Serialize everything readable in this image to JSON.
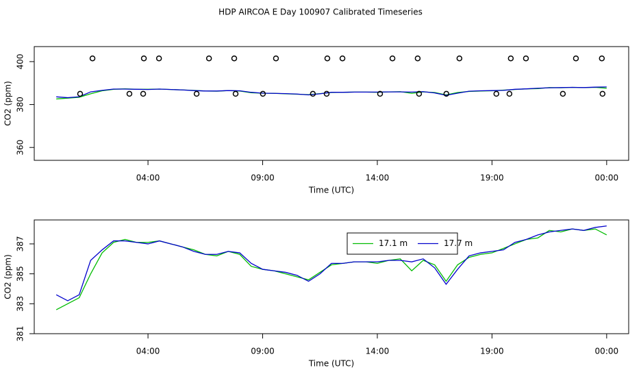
{
  "title": "HDP AIRCOA E  Day 100907  Calibrated Timeseries",
  "chart_data": [
    {
      "type": "line",
      "xlabel": "Time (UTC)",
      "ylabel": "CO2 (ppm)",
      "xlim": [
        -0.96,
        24.96
      ],
      "ylim": [
        354,
        407
      ],
      "xticks": [
        {
          "value": 4,
          "label": "04:00"
        },
        {
          "value": 9,
          "label": "09:00"
        },
        {
          "value": 14,
          "label": "14:00"
        },
        {
          "value": 19,
          "label": "19:00"
        },
        {
          "value": 24,
          "label": "00:00"
        }
      ],
      "yticks": [
        360,
        380,
        400
      ],
      "x": [
        0,
        0.5,
        1,
        1.5,
        2,
        2.5,
        3,
        3.5,
        4,
        4.5,
        5,
        5.5,
        6,
        6.5,
        7,
        7.5,
        8,
        8.5,
        9,
        9.5,
        10,
        10.5,
        11,
        11.5,
        12,
        12.5,
        13,
        13.5,
        14,
        14.5,
        15,
        15.5,
        16,
        16.5,
        17,
        17.5,
        18,
        18.5,
        19,
        19.5,
        20,
        20.5,
        21,
        21.5,
        22,
        22.5,
        23,
        23.5,
        24
      ],
      "series": [
        {
          "color": "#00bb00",
          "values": [
            382.6,
            383.0,
            383.4,
            385.0,
            386.4,
            387.1,
            387.3,
            387.1,
            387.1,
            387.2,
            387.0,
            386.8,
            386.6,
            386.3,
            386.2,
            386.5,
            386.3,
            385.5,
            385.3,
            385.2,
            385.0,
            384.8,
            384.6,
            385.1,
            385.6,
            385.7,
            385.8,
            385.8,
            385.7,
            385.9,
            386.0,
            385.2,
            385.9,
            385.6,
            384.5,
            385.6,
            386.1,
            386.3,
            386.4,
            386.7,
            387.0,
            387.3,
            387.4,
            387.9,
            387.8,
            388.0,
            387.9,
            388.0,
            387.6
          ]
        },
        {
          "color": "#0000cc",
          "values": [
            383.6,
            383.2,
            383.6,
            385.9,
            386.6,
            387.2,
            387.2,
            387.1,
            387.0,
            387.2,
            387.0,
            386.8,
            386.5,
            386.3,
            386.3,
            386.5,
            386.4,
            385.7,
            385.3,
            385.2,
            385.1,
            384.9,
            384.5,
            385.0,
            385.7,
            385.7,
            385.8,
            385.8,
            385.8,
            385.9,
            385.9,
            385.8,
            386.0,
            385.4,
            384.3,
            385.3,
            386.2,
            386.4,
            386.5,
            386.6,
            387.1,
            387.3,
            387.6,
            387.8,
            387.9,
            388.0,
            387.9,
            388.1,
            388.2
          ]
        },
        {
          "color": "#000000",
          "marker": "circle",
          "x": [
            1.58,
            3.82,
            4.48,
            6.66,
            7.76,
            9.58,
            11.82,
            12.48,
            14.66,
            15.76,
            17.58,
            19.82,
            20.48,
            22.66,
            23.79
          ],
          "values": [
            401.5,
            401.5,
            401.5,
            401.5,
            401.5,
            401.5,
            401.5,
            401.5,
            401.5,
            401.5,
            401.5,
            401.5,
            401.5,
            401.5,
            401.5
          ]
        },
        {
          "color": "#000000",
          "marker": "circle",
          "x": [
            1.04,
            3.19,
            3.79,
            6.12,
            7.82,
            9.01,
            11.19,
            11.79,
            14.12,
            15.82,
            17.01,
            19.19,
            19.76,
            22.09,
            23.82
          ],
          "values": [
            385,
            385,
            385,
            385,
            385,
            385,
            385,
            385,
            385,
            385,
            385,
            385,
            385,
            385,
            385
          ]
        }
      ]
    },
    {
      "type": "line",
      "xlabel": "Time (UTC)",
      "ylabel": "CO2 (ppm)",
      "xlim": [
        -0.96,
        24.96
      ],
      "ylim": [
        381.0,
        388.6
      ],
      "xticks": [
        {
          "value": 4,
          "label": "04:00"
        },
        {
          "value": 9,
          "label": "09:00"
        },
        {
          "value": 14,
          "label": "14:00"
        },
        {
          "value": 19,
          "label": "19:00"
        },
        {
          "value": 24,
          "label": "00:00"
        }
      ],
      "yticks": [
        381,
        383,
        385,
        387
      ],
      "legend": "top-center",
      "x": [
        0,
        0.5,
        1,
        1.5,
        2,
        2.5,
        3,
        3.5,
        4,
        4.5,
        5,
        5.5,
        6,
        6.5,
        7,
        7.5,
        8,
        8.5,
        9,
        9.5,
        10,
        10.5,
        11,
        11.5,
        12,
        12.5,
        13,
        13.5,
        14,
        14.5,
        15,
        15.5,
        16,
        16.5,
        17,
        17.5,
        18,
        18.5,
        19,
        19.5,
        20,
        20.5,
        21,
        21.5,
        22,
        22.5,
        23,
        23.5,
        24
      ],
      "series": [
        {
          "name": "17.1 m",
          "color": "#00bb00",
          "values": [
            382.6,
            383.0,
            383.4,
            385.0,
            386.4,
            387.1,
            387.3,
            387.1,
            387.1,
            387.2,
            387.0,
            386.8,
            386.6,
            386.3,
            386.2,
            386.5,
            386.3,
            385.5,
            385.3,
            385.2,
            385.0,
            384.8,
            384.6,
            385.1,
            385.6,
            385.7,
            385.8,
            385.8,
            385.7,
            385.9,
            386.0,
            385.2,
            385.9,
            385.6,
            384.5,
            385.6,
            386.1,
            386.3,
            386.4,
            386.7,
            387.0,
            387.3,
            387.4,
            387.9,
            387.8,
            388.0,
            387.9,
            388.0,
            387.6
          ]
        },
        {
          "name": "17.7 m",
          "color": "#0000cc",
          "values": [
            383.6,
            383.2,
            383.6,
            385.9,
            386.6,
            387.2,
            387.2,
            387.1,
            387.0,
            387.2,
            387.0,
            386.8,
            386.5,
            386.3,
            386.3,
            386.5,
            386.4,
            385.7,
            385.3,
            385.2,
            385.1,
            384.9,
            384.5,
            385.0,
            385.7,
            385.7,
            385.8,
            385.8,
            385.8,
            385.9,
            385.9,
            385.8,
            386.0,
            385.4,
            384.3,
            385.3,
            386.2,
            386.4,
            386.5,
            386.6,
            387.1,
            387.3,
            387.6,
            387.8,
            387.9,
            388.0,
            387.9,
            388.1,
            388.2
          ]
        }
      ]
    }
  ]
}
